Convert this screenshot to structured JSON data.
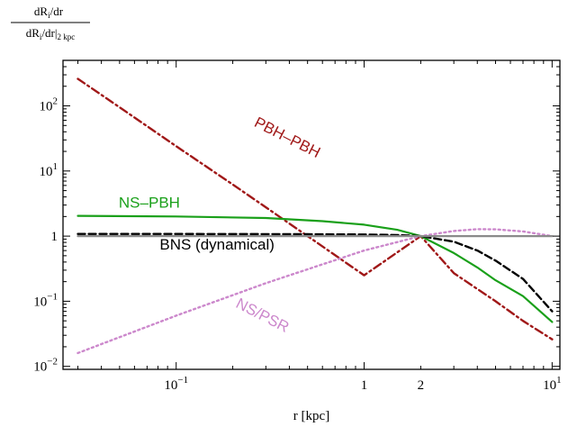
{
  "chart_data": {
    "type": "line",
    "ylabel": {
      "numerator": "dR",
      "numerator_sub": "i",
      "numerator_tail": "/dr",
      "denominator": "dR",
      "denominator_sub": "i",
      "denominator_tail": "/dr|",
      "denominator_ref": "2 kpc"
    },
    "xlabel": "r [kpc]",
    "xscale": "log",
    "yscale": "log",
    "xlim": [
      0.025,
      11
    ],
    "ylim": [
      0.009,
      500
    ],
    "x_ticks": [
      {
        "value": 0.1,
        "base": "10",
        "exp": "−1"
      },
      {
        "value": 1,
        "base": "1",
        "exp": ""
      },
      {
        "value": 2,
        "base": "2",
        "exp": ""
      },
      {
        "value": 10,
        "base": "10",
        "exp": "1"
      }
    ],
    "y_ticks": [
      {
        "value": 0.01,
        "base": "10",
        "exp": "−2"
      },
      {
        "value": 0.1,
        "base": "10",
        "exp": "−1"
      },
      {
        "value": 1,
        "base": "1",
        "exp": ""
      },
      {
        "value": 10,
        "base": "10",
        "exp": "1"
      },
      {
        "value": 100,
        "base": "10",
        "exp": "2"
      }
    ],
    "series": [
      {
        "name": "PBH–PBH",
        "color": "#a01818",
        "dash": "dashdot",
        "x": [
          0.03,
          0.05,
          0.1,
          0.2,
          0.5,
          1,
          2,
          3,
          5,
          7,
          10
        ],
        "y": [
          260,
          95,
          24,
          6.2,
          1.0,
          0.25,
          1.0,
          0.27,
          0.1,
          0.05,
          0.026
        ]
      },
      {
        "name": "NS–PBH",
        "color": "#1aa01a",
        "dash": "solid",
        "x": [
          0.03,
          0.1,
          0.3,
          0.6,
          1,
          1.5,
          2,
          3,
          4,
          5,
          7,
          10
        ],
        "y": [
          2.05,
          2.0,
          1.9,
          1.7,
          1.5,
          1.25,
          1.0,
          0.55,
          0.33,
          0.21,
          0.12,
          0.048
        ]
      },
      {
        "name": "BNS (dynamical)",
        "color": "#000000",
        "dash": "dashed",
        "x": [
          0.03,
          0.1,
          0.5,
          1,
          1.5,
          2,
          3,
          4,
          5,
          7,
          10
        ],
        "y": [
          1.08,
          1.08,
          1.07,
          1.06,
          1.04,
          1.0,
          0.82,
          0.6,
          0.42,
          0.22,
          0.07
        ]
      },
      {
        "name": "NS/PSR",
        "color": "#cc88cc",
        "dash": "dotted",
        "x": [
          0.03,
          0.1,
          0.3,
          1,
          2,
          3,
          4,
          5,
          7,
          10
        ],
        "y": [
          0.016,
          0.06,
          0.19,
          0.6,
          1.0,
          1.2,
          1.28,
          1.27,
          1.18,
          1.0
        ]
      },
      {
        "name": "",
        "color": "#8a8a8a",
        "dash": "solid",
        "x": [
          0.03,
          10
        ],
        "y": [
          1,
          1
        ]
      }
    ],
    "annotations": [
      {
        "text": "PBH–PBH",
        "color": "#a01818",
        "x": 0.38,
        "y": 28,
        "rotation_deg": 27
      },
      {
        "text": "NS–PBH",
        "color": "#1aa01a",
        "x": 0.072,
        "y": 2.75,
        "rotation_deg": 0
      },
      {
        "text": "BNS (dynamical)",
        "color": "#000000",
        "x": 0.165,
        "y": 0.62,
        "rotation_deg": 0
      },
      {
        "text": "NS/PSR",
        "color": "#cc88cc",
        "x": 0.28,
        "y": 0.052,
        "rotation_deg": 27
      }
    ],
    "grid": false,
    "legend": "none"
  }
}
